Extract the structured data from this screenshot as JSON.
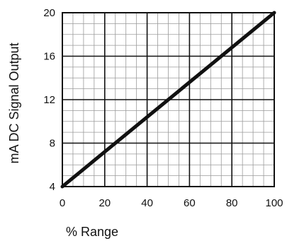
{
  "chart_data": {
    "type": "line",
    "title": "",
    "xlabel": "% Range",
    "ylabel": "mA DC Signal Output",
    "xlim": [
      0,
      100
    ],
    "ylim": [
      4,
      20
    ],
    "x_ticks": [
      "0",
      "20",
      "40",
      "60",
      "80",
      "100"
    ],
    "y_ticks": [
      "4",
      "8",
      "12",
      "16",
      "20"
    ],
    "grid": true,
    "legend": "none",
    "series": [
      {
        "x": [
          0,
          100
        ],
        "y": [
          4,
          20
        ]
      }
    ]
  }
}
